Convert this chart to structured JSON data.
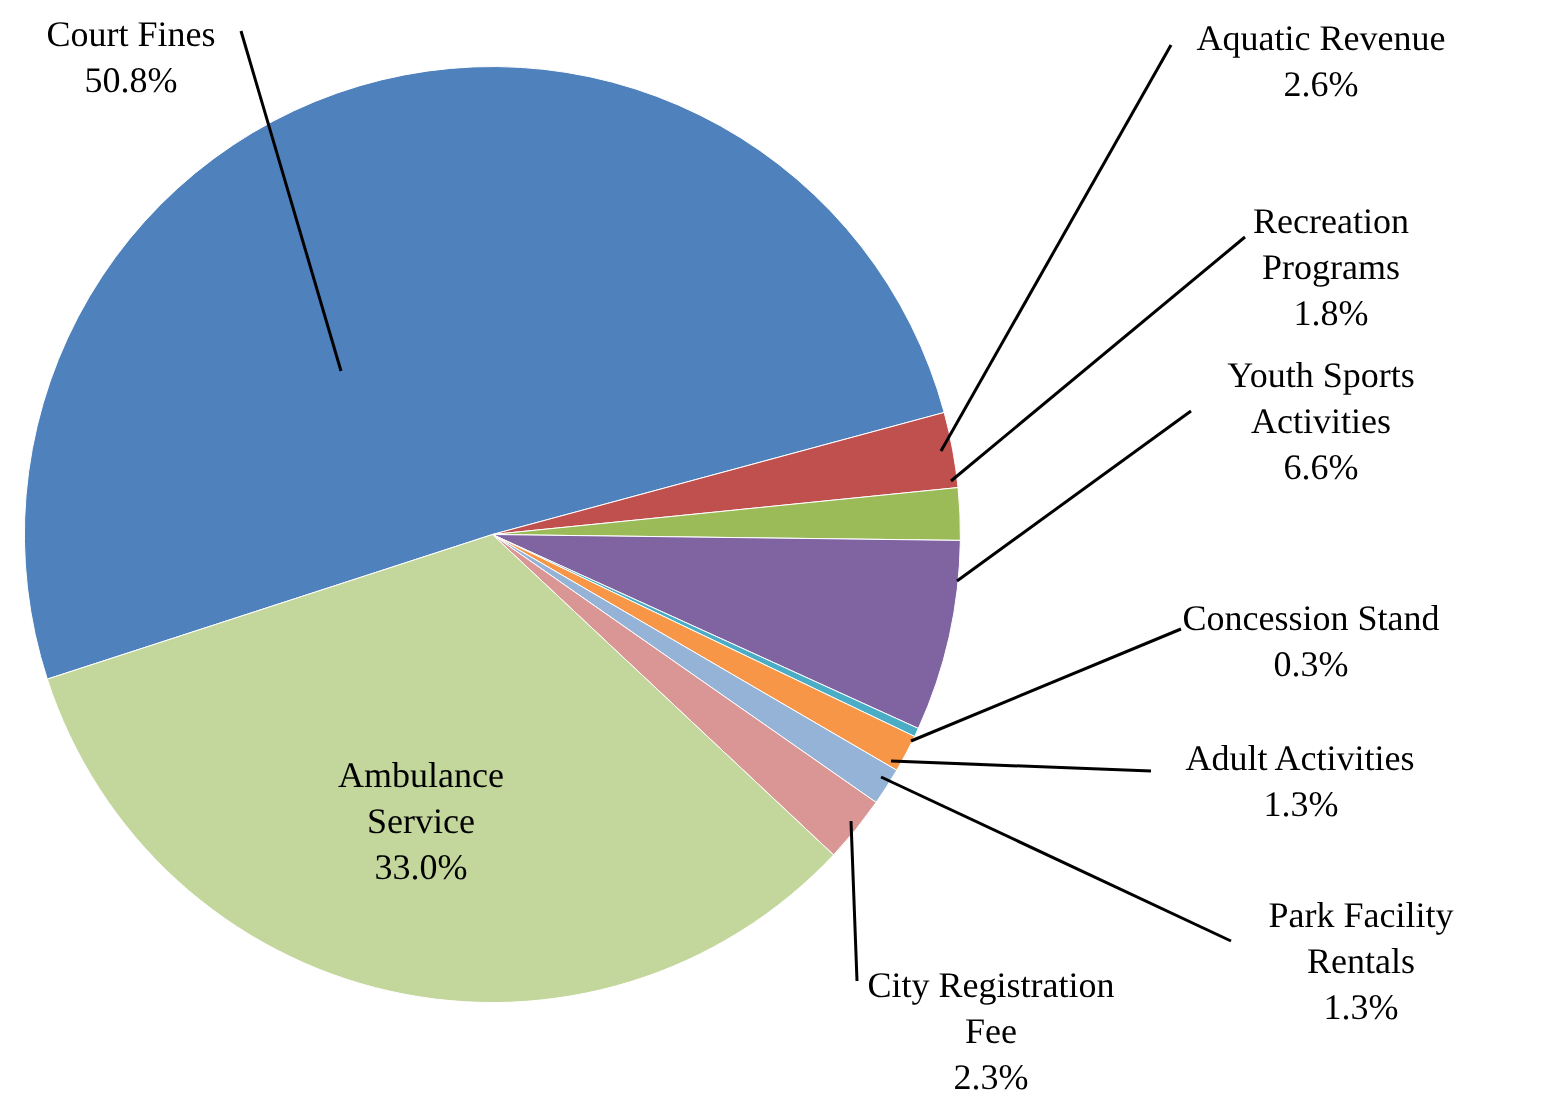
{
  "chart_data": {
    "type": "pie",
    "categories": [
      "Court Fines",
      "Aquatic Revenue",
      "Recreation Programs",
      "Youth Sports Activities",
      "Concession Stand",
      "Adult Activities",
      "Park Facility Rentals",
      "City Registration Fee",
      "Ambulance Service"
    ],
    "values": [
      50.8,
      2.6,
      1.8,
      6.6,
      0.3,
      1.3,
      1.3,
      2.3,
      33.0
    ],
    "colors": [
      "#4f81bd",
      "#c0504d",
      "#9bbb59",
      "#8064a2",
      "#4bacc6",
      "#f79646",
      "#95b3d7",
      "#d99694",
      "#c3d69b"
    ],
    "value_labels": [
      "50.8%",
      "2.6%",
      "1.8%",
      "6.6%",
      "0.3%",
      "1.3%",
      "1.3%",
      "2.3%",
      "33.0%"
    ]
  }
}
